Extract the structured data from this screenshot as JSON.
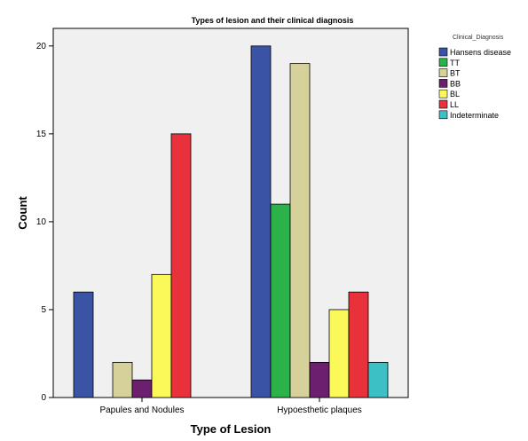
{
  "chart_data": {
    "type": "bar",
    "title": "Types of lesion and their clinical diagnosis",
    "xlabel": "Type of Lesion",
    "ylabel": "Count",
    "ylim": [
      0,
      21
    ],
    "yticks": [
      0,
      5,
      10,
      15,
      20
    ],
    "grid": false,
    "legend_title": "Clinical_Diagnosis",
    "legend_position": "right",
    "categories": [
      "Papules and Nodules",
      "Hypoesthetic plaques"
    ],
    "series": [
      {
        "name": "Hansens disease",
        "color": "#3a53a4",
        "values": [
          6,
          20
        ]
      },
      {
        "name": "TT",
        "color": "#2bb34a",
        "values": [
          0,
          11
        ]
      },
      {
        "name": "BT",
        "color": "#d6d09a",
        "values": [
          2,
          19
        ]
      },
      {
        "name": "BB",
        "color": "#6b1f6e",
        "values": [
          1,
          2
        ]
      },
      {
        "name": "BL",
        "color": "#fbf95a",
        "values": [
          7,
          5
        ]
      },
      {
        "name": "LL",
        "color": "#e8313a",
        "values": [
          15,
          6
        ]
      },
      {
        "name": "Indeterminate",
        "color": "#3dbfc6",
        "values": [
          0,
          2
        ]
      }
    ]
  }
}
